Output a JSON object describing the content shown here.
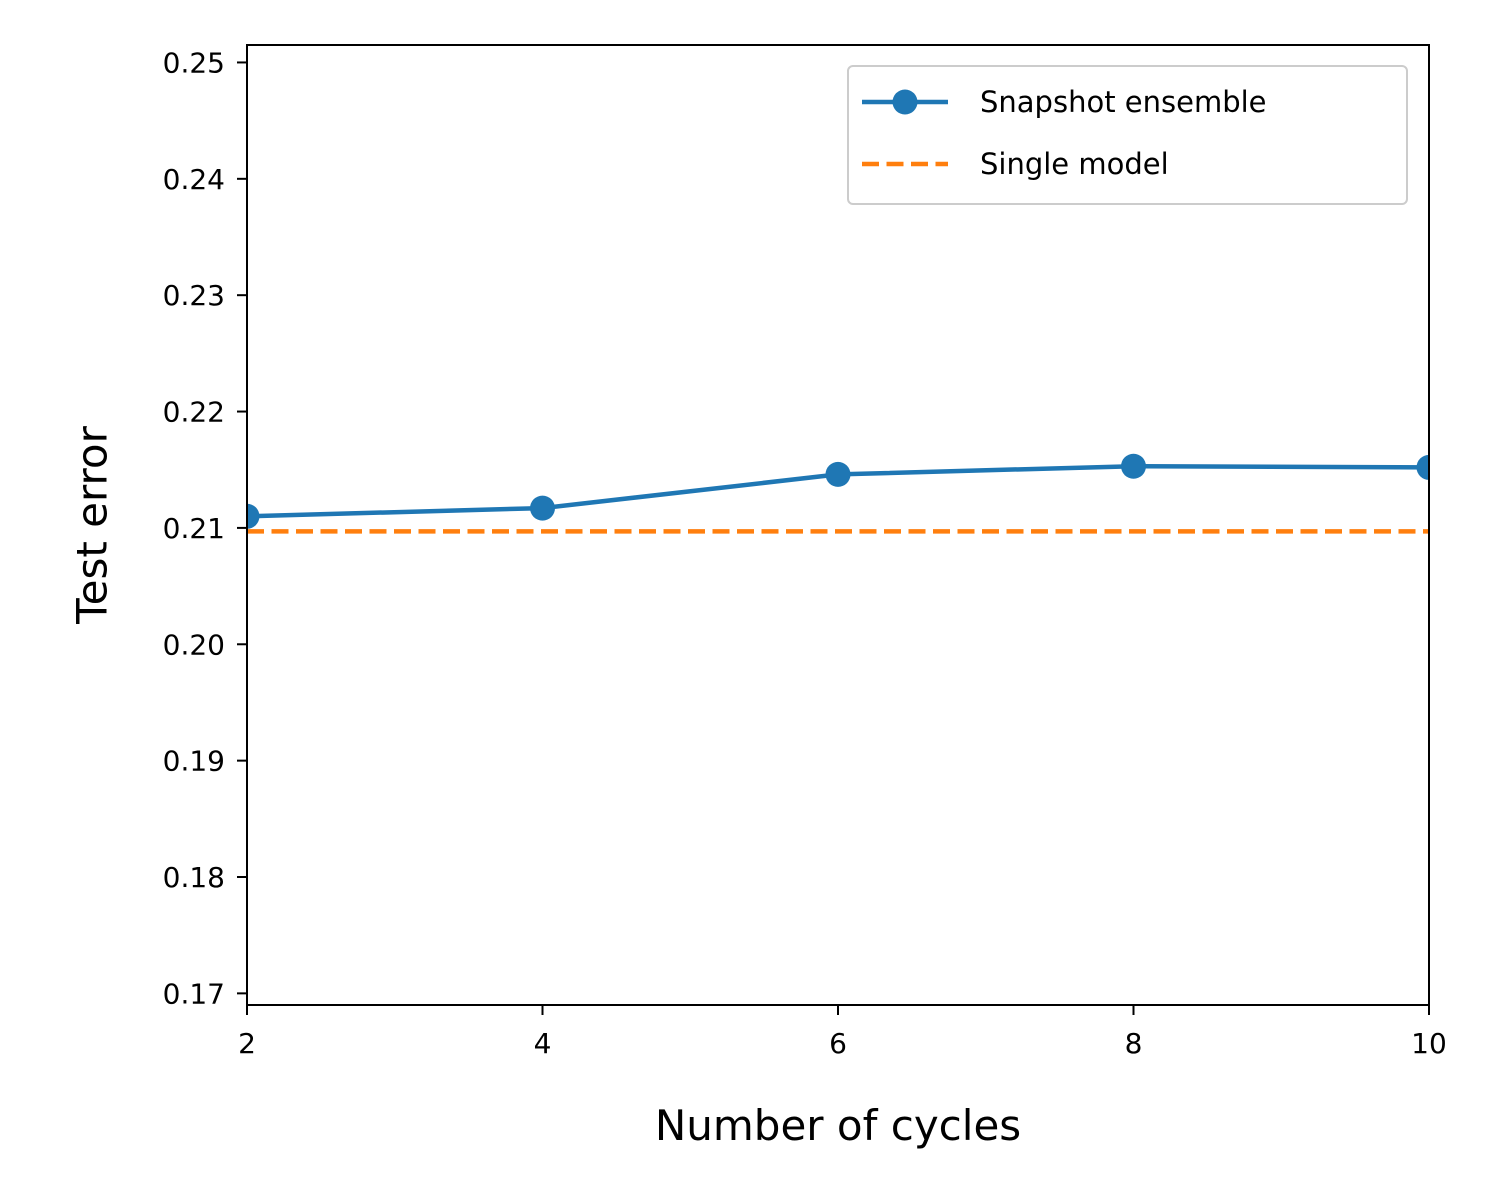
{
  "chart_data": {
    "type": "line",
    "title": "",
    "xlabel": "Number of cycles",
    "ylabel": "Test error",
    "xlim": [
      2,
      10
    ],
    "ylim": [
      0.169,
      0.2515
    ],
    "x_ticks": [
      2,
      4,
      6,
      8,
      10
    ],
    "x_tick_labels": [
      "2",
      "4",
      "6",
      "8",
      "10"
    ],
    "y_ticks": [
      0.17,
      0.18,
      0.19,
      0.2,
      0.21,
      0.22,
      0.23,
      0.24,
      0.25
    ],
    "y_tick_labels": [
      "0.17",
      "0.18",
      "0.19",
      "0.20",
      "0.21",
      "0.22",
      "0.23",
      "0.24",
      "0.25"
    ],
    "grid": false,
    "legend_position": "top-right",
    "series": [
      {
        "name": "Snapshot ensemble",
        "style": "solid-with-markers",
        "color": "#1f77b4",
        "x": [
          2,
          4,
          6,
          8,
          10
        ],
        "y": [
          0.211,
          0.2117,
          0.2146,
          0.2153,
          0.2152
        ]
      },
      {
        "name": "Single model",
        "style": "dashed",
        "color": "#ff7f0e",
        "x": [
          2,
          10
        ],
        "y": [
          0.2097,
          0.2097
        ]
      }
    ]
  }
}
